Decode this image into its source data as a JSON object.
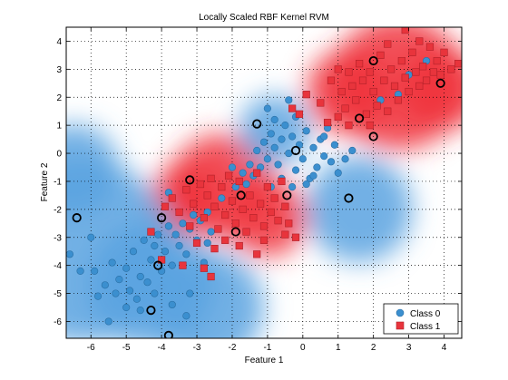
{
  "chart_data": {
    "type": "scatter",
    "title": "Locally Scaled RBF Kernel RVM",
    "xlabel": "Feature 1",
    "ylabel": "Feature 2",
    "xlim": [
      -6.7,
      4.5
    ],
    "ylim": [
      -6.6,
      4.5
    ],
    "x_ticks": [
      "-6",
      "-5",
      "-4",
      "-3",
      "-2",
      "-1",
      "0",
      "1",
      "2",
      "3",
      "4"
    ],
    "y_ticks": [
      "4",
      "3",
      "2",
      "1",
      "0",
      "-1",
      "-2",
      "-3",
      "-4",
      "-5",
      "-6"
    ],
    "x_tick_values": [
      -6,
      -5,
      -4,
      -3,
      -2,
      -1,
      0,
      1,
      2,
      3,
      4
    ],
    "y_tick_values": [
      4,
      3,
      2,
      1,
      0,
      -1,
      -2,
      -3,
      -4,
      -5,
      -6
    ],
    "grid": true,
    "legend_position": "bottom-right",
    "colors": {
      "class0": "#3b8fcf",
      "class1": "#e8343c",
      "region0": "#5aa2e0",
      "region1": "#f0323c",
      "relevance_vector": "#000000"
    },
    "decision_regions": [
      {
        "class": 1,
        "x": 2.7,
        "y": 2.5,
        "r": 1.9
      },
      {
        "class": 1,
        "x": 1.3,
        "y": 2.2,
        "r": 1.2
      },
      {
        "class": 1,
        "x": 3.9,
        "y": 2.3,
        "r": 1.2
      },
      {
        "class": 1,
        "x": -2.3,
        "y": -1.2,
        "r": 1.5
      },
      {
        "class": 1,
        "x": -1.0,
        "y": -2.3,
        "r": 1.1
      },
      {
        "class": 1,
        "x": -3.3,
        "y": -1.6,
        "r": 1.0
      },
      {
        "class": 0,
        "x": -6.2,
        "y": -3.5,
        "r": 2.6
      },
      {
        "class": 0,
        "x": -4.3,
        "y": -4.7,
        "r": 1.8
      },
      {
        "class": 0,
        "x": -6.5,
        "y": -0.6,
        "r": 1.3
      },
      {
        "class": 0,
        "x": 1.6,
        "y": -2.0,
        "r": 1.5
      },
      {
        "class": 0,
        "x": -0.8,
        "y": 0.8,
        "r": 1.0
      },
      {
        "class": 0,
        "x": -2.7,
        "y": -5.5,
        "r": 1.6
      }
    ],
    "series": [
      {
        "name": "Class 0",
        "marker": "circle",
        "points": [
          [
            -6.0,
            -3.0
          ],
          [
            -5.9,
            -4.2
          ],
          [
            -5.6,
            -4.7
          ],
          [
            -5.4,
            -3.9
          ],
          [
            -5.2,
            -4.5
          ],
          [
            -5.0,
            -4.1
          ],
          [
            -4.9,
            -4.9
          ],
          [
            -4.8,
            -3.5
          ],
          [
            -4.6,
            -4.4
          ],
          [
            -4.5,
            -3.1
          ],
          [
            -4.4,
            -4.6
          ],
          [
            -4.3,
            -3.8
          ],
          [
            -4.2,
            -3.3
          ],
          [
            -4.1,
            -2.9
          ],
          [
            -4.0,
            -4.2
          ],
          [
            -3.9,
            -3.5
          ],
          [
            -3.8,
            -2.6
          ],
          [
            -3.7,
            -4.0
          ],
          [
            -3.6,
            -2.9
          ],
          [
            -3.5,
            -3.3
          ],
          [
            -3.4,
            -2.5
          ],
          [
            -3.3,
            -3.6
          ],
          [
            -3.2,
            -2.7
          ],
          [
            -3.1,
            -2.2
          ],
          [
            -3.0,
            -3.1
          ],
          [
            -2.9,
            -2.4
          ],
          [
            -2.8,
            -3.9
          ],
          [
            -4.7,
            -5.2
          ],
          [
            -5.3,
            -5.0
          ],
          [
            -5.8,
            -5.1
          ],
          [
            -5.5,
            -6.0
          ],
          [
            -4.6,
            -5.6
          ],
          [
            -3.7,
            -5.4
          ],
          [
            -3.3,
            -5.8
          ],
          [
            -3.2,
            -5.0
          ],
          [
            -4.2,
            -5.0
          ],
          [
            -6.6,
            -3.6
          ],
          [
            -6.3,
            -4.2
          ],
          [
            -5.0,
            -5.5
          ],
          [
            -2.7,
            -3.2
          ],
          [
            -1.7,
            -0.7
          ],
          [
            -1.6,
            -1.1
          ],
          [
            -1.5,
            -0.4
          ],
          [
            -1.4,
            -0.8
          ],
          [
            -1.3,
            0.1
          ],
          [
            -1.2,
            -0.5
          ],
          [
            -1.1,
            0.4
          ],
          [
            -1.0,
            -0.2
          ],
          [
            -0.9,
            0.7
          ],
          [
            -0.8,
            0.2
          ],
          [
            -0.7,
            -0.4
          ],
          [
            -0.6,
            0.5
          ],
          [
            -0.5,
            1.0
          ],
          [
            -0.4,
            0.0
          ],
          [
            -0.3,
            0.6
          ],
          [
            -0.2,
            -0.6
          ],
          [
            -0.1,
            0.3
          ],
          [
            0.0,
            -0.2
          ],
          [
            0.1,
            0.8
          ],
          [
            0.2,
            -0.9
          ],
          [
            0.3,
            0.2
          ],
          [
            0.4,
            -0.5
          ],
          [
            0.5,
            0.5
          ],
          [
            0.6,
            -0.1
          ],
          [
            0.7,
            0.9
          ],
          [
            0.8,
            -0.3
          ],
          [
            0.9,
            0.3
          ],
          [
            1.0,
            -0.7
          ],
          [
            1.2,
            -0.2
          ],
          [
            1.4,
            0.1
          ],
          [
            -0.6,
            -0.9
          ],
          [
            -0.9,
            -1.2
          ],
          [
            -0.3,
            -1.2
          ],
          [
            0.1,
            -1.1
          ],
          [
            0.3,
            -0.8
          ],
          [
            -2.0,
            -0.5
          ],
          [
            -2.3,
            -1.6
          ],
          [
            -1.9,
            -1.2
          ],
          [
            -0.4,
            1.9
          ],
          [
            -1.0,
            1.6
          ],
          [
            -0.8,
            1.2
          ],
          [
            2.7,
            2.1
          ],
          [
            3.0,
            2.8
          ],
          [
            3.5,
            3.3
          ],
          [
            2.2,
            1.9
          ],
          [
            -2.7,
            -2.1
          ],
          [
            -3.8,
            -1.4
          ],
          [
            -2.6,
            -2.8
          ],
          [
            -0.2,
            1.3
          ],
          [
            0.6,
            0.6
          ]
        ]
      },
      {
        "name": "Class 1",
        "marker": "square",
        "points": [
          [
            0.8,
            2.6
          ],
          [
            1.0,
            3.0
          ],
          [
            1.1,
            2.2
          ],
          [
            1.2,
            1.6
          ],
          [
            1.3,
            2.9
          ],
          [
            1.4,
            2.4
          ],
          [
            1.5,
            1.9
          ],
          [
            1.6,
            3.2
          ],
          [
            1.7,
            2.6
          ],
          [
            1.8,
            1.4
          ],
          [
            1.9,
            2.9
          ],
          [
            2.0,
            2.2
          ],
          [
            2.1,
            1.7
          ],
          [
            2.2,
            3.5
          ],
          [
            2.3,
            2.6
          ],
          [
            2.4,
            1.5
          ],
          [
            2.5,
            3.0
          ],
          [
            2.6,
            2.4
          ],
          [
            2.7,
            1.9
          ],
          [
            2.8,
            3.3
          ],
          [
            2.9,
            2.7
          ],
          [
            3.0,
            2.2
          ],
          [
            3.1,
            3.6
          ],
          [
            3.2,
            2.9
          ],
          [
            3.3,
            2.4
          ],
          [
            3.4,
            3.1
          ],
          [
            3.5,
            2.6
          ],
          [
            3.6,
            3.8
          ],
          [
            3.7,
            2.9
          ],
          [
            3.8,
            3.3
          ],
          [
            3.9,
            2.8
          ],
          [
            4.0,
            3.6
          ],
          [
            4.2,
            3.0
          ],
          [
            4.4,
            3.2
          ],
          [
            2.9,
            4.4
          ],
          [
            3.3,
            4.0
          ],
          [
            1.0,
            1.3
          ],
          [
            1.3,
            1.0
          ],
          [
            0.5,
            1.8
          ],
          [
            0.1,
            2.1
          ],
          [
            -0.1,
            1.4
          ],
          [
            -0.3,
            1.6
          ],
          [
            0.7,
            1.1
          ],
          [
            1.9,
            1.0
          ],
          [
            2.4,
            3.9
          ],
          [
            -3.7,
            -1.6
          ],
          [
            -3.5,
            -2.1
          ],
          [
            -3.3,
            -1.3
          ],
          [
            -3.1,
            -1.8
          ],
          [
            -2.9,
            -1.1
          ],
          [
            -2.8,
            -2.3
          ],
          [
            -2.7,
            -1.5
          ],
          [
            -2.6,
            -0.9
          ],
          [
            -2.5,
            -1.9
          ],
          [
            -2.4,
            -2.7
          ],
          [
            -2.3,
            -1.2
          ],
          [
            -2.2,
            -2.2
          ],
          [
            -2.1,
            -0.8
          ],
          [
            -2.0,
            -1.7
          ],
          [
            -1.9,
            -2.5
          ],
          [
            -1.8,
            -1.0
          ],
          [
            -1.7,
            -2.0
          ],
          [
            -1.6,
            -2.8
          ],
          [
            -1.5,
            -1.5
          ],
          [
            -1.4,
            -2.3
          ],
          [
            -1.3,
            -0.7
          ],
          [
            -1.2,
            -1.8
          ],
          [
            -1.1,
            -2.6
          ],
          [
            -1.0,
            -1.2
          ],
          [
            -0.9,
            -2.1
          ],
          [
            -0.8,
            -1.6
          ],
          [
            -0.7,
            -2.4
          ],
          [
            -0.6,
            -1.0
          ],
          [
            -0.5,
            -1.9
          ],
          [
            -0.4,
            -2.5
          ],
          [
            -3.2,
            -2.6
          ],
          [
            -3.0,
            -3.2
          ],
          [
            -2.5,
            -3.4
          ],
          [
            -2.2,
            -3.1
          ],
          [
            -1.8,
            -3.3
          ],
          [
            -4.3,
            -2.8
          ],
          [
            -4.0,
            -3.8
          ],
          [
            -2.8,
            -4.1
          ],
          [
            -2.6,
            -4.4
          ],
          [
            -3.9,
            -1.9
          ],
          [
            -0.2,
            -3.0
          ],
          [
            -0.5,
            -2.9
          ],
          [
            -1.3,
            -3.6
          ],
          [
            -3.4,
            -4.0
          ],
          [
            -1.1,
            -3.1
          ]
        ]
      }
    ],
    "relevance_vectors": [
      [
        -6.4,
        -2.3
      ],
      [
        -4.0,
        -2.3
      ],
      [
        -4.3,
        -5.6
      ],
      [
        -3.8,
        -6.5
      ],
      [
        -4.1,
        -4.0
      ],
      [
        -3.2,
        -0.95
      ],
      [
        -1.75,
        -1.5
      ],
      [
        -1.3,
        1.05
      ],
      [
        -1.9,
        -2.8
      ],
      [
        -0.45,
        -1.5
      ],
      [
        -0.2,
        0.1
      ],
      [
        1.3,
        -1.6
      ],
      [
        1.6,
        1.25
      ],
      [
        2.0,
        3.3
      ],
      [
        2.0,
        0.6
      ],
      [
        3.9,
        2.5
      ]
    ]
  }
}
